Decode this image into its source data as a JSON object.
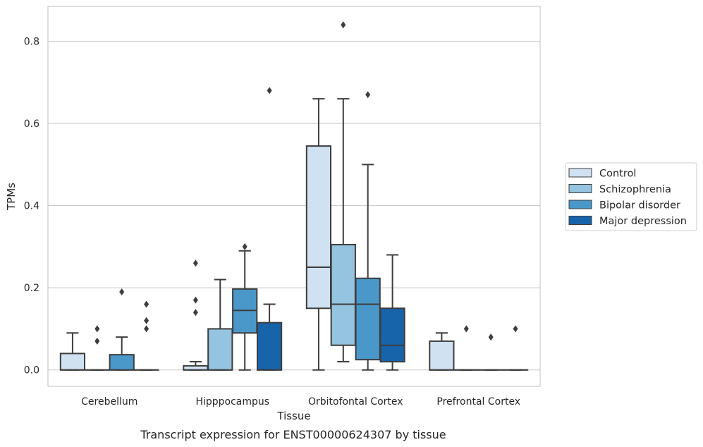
{
  "chart_data": {
    "type": "box",
    "xlabel": "Tissue",
    "ylabel": "TPMs",
    "caption": "Transcript expression for ENST00000624307 by tissue",
    "ylim": [
      -0.04,
      0.885
    ],
    "yticks": [
      0.0,
      0.2,
      0.4,
      0.6,
      0.8
    ],
    "ytick_labels": [
      "0.0",
      "0.2",
      "0.4",
      "0.6",
      "0.8"
    ],
    "grid": "horizontal",
    "legend_position": "right",
    "categories": [
      "Cerebellum",
      "Hipppocampus",
      "Orbitofontal Cortex",
      "Prefrontal Cortex"
    ],
    "series": [
      {
        "name": "Control",
        "color": "#d0e1f2",
        "boxes": [
          {
            "q1": 0.0,
            "median": 0.0,
            "q3": 0.04,
            "whislo": 0.0,
            "whishi": 0.09,
            "fliers": []
          },
          {
            "q1": 0.0,
            "median": 0.0,
            "q3": 0.01,
            "whislo": 0.0,
            "whishi": 0.02,
            "fliers": [
              0.14,
              0.17,
              0.26
            ]
          },
          {
            "q1": 0.15,
            "median": 0.25,
            "q3": 0.545,
            "whislo": 0.0,
            "whishi": 0.66,
            "fliers": []
          },
          {
            "q1": 0.0,
            "median": 0.0,
            "q3": 0.07,
            "whislo": 0.0,
            "whishi": 0.09,
            "fliers": []
          }
        ]
      },
      {
        "name": "Schizophrenia",
        "color": "#94c4df",
        "boxes": [
          {
            "q1": 0.0,
            "median": 0.0,
            "q3": 0.0,
            "whislo": 0.0,
            "whishi": 0.0,
            "fliers": [
              0.07,
              0.1
            ]
          },
          {
            "q1": 0.0,
            "median": 0.0,
            "q3": 0.1,
            "whislo": 0.0,
            "whishi": 0.22,
            "fliers": []
          },
          {
            "q1": 0.06,
            "median": 0.16,
            "q3": 0.305,
            "whislo": 0.02,
            "whishi": 0.66,
            "fliers": [
              0.84
            ]
          },
          {
            "q1": 0.0,
            "median": 0.0,
            "q3": 0.0,
            "whislo": 0.0,
            "whishi": 0.0,
            "fliers": [
              0.1
            ]
          }
        ]
      },
      {
        "name": "Bipolar disorder",
        "color": "#4a98c9",
        "boxes": [
          {
            "q1": 0.0,
            "median": 0.0,
            "q3": 0.037,
            "whislo": 0.0,
            "whishi": 0.08,
            "fliers": [
              0.19
            ]
          },
          {
            "q1": 0.09,
            "median": 0.145,
            "q3": 0.197,
            "whislo": 0.0,
            "whishi": 0.29,
            "fliers": [
              0.3
            ]
          },
          {
            "q1": 0.025,
            "median": 0.16,
            "q3": 0.223,
            "whislo": 0.0,
            "whishi": 0.5,
            "fliers": [
              0.67
            ]
          },
          {
            "q1": 0.0,
            "median": 0.0,
            "q3": 0.0,
            "whislo": 0.0,
            "whishi": 0.0,
            "fliers": [
              0.08
            ]
          }
        ]
      },
      {
        "name": "Major depression",
        "color": "#1764ab",
        "boxes": [
          {
            "q1": 0.0,
            "median": 0.0,
            "q3": 0.0,
            "whislo": 0.0,
            "whishi": 0.0,
            "fliers": [
              0.1,
              0.12,
              0.16
            ]
          },
          {
            "q1": 0.0,
            "median": 0.0,
            "q3": 0.115,
            "whislo": 0.0,
            "whishi": 0.16,
            "fliers": [
              0.68
            ]
          },
          {
            "q1": 0.02,
            "median": 0.06,
            "q3": 0.15,
            "whislo": 0.0,
            "whishi": 0.28,
            "fliers": []
          },
          {
            "q1": 0.0,
            "median": 0.0,
            "q3": 0.0,
            "whislo": 0.0,
            "whishi": 0.0,
            "fliers": [
              0.1
            ]
          }
        ]
      }
    ]
  }
}
